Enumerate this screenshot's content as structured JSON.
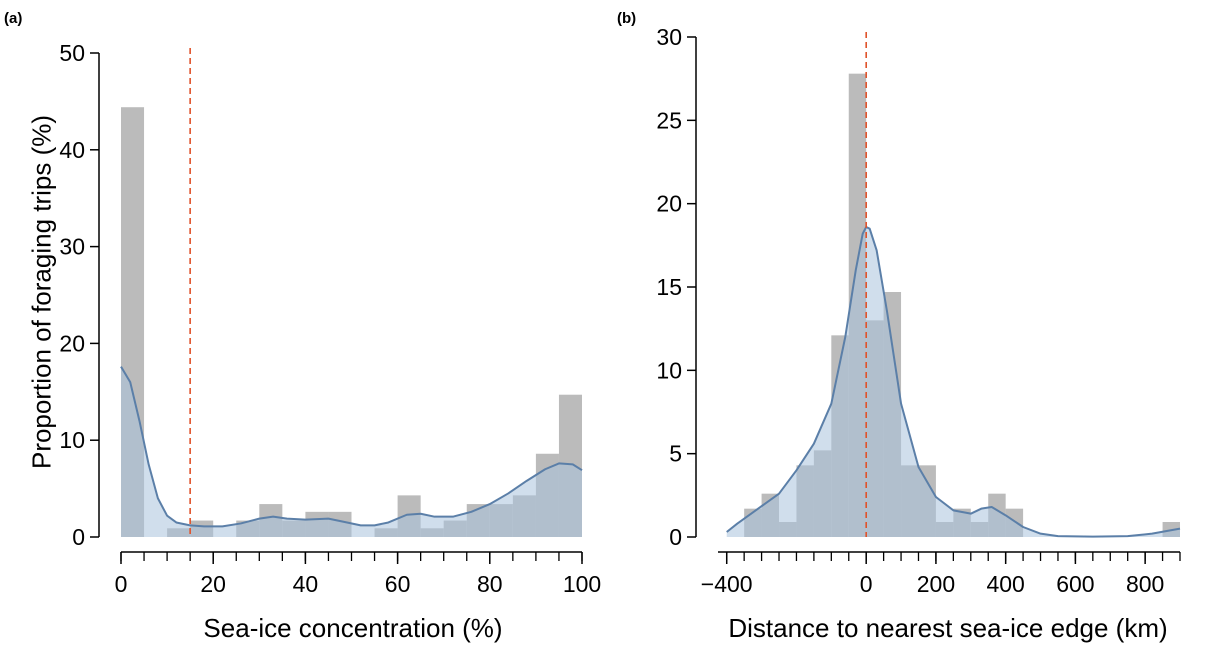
{
  "chart_data": [
    {
      "panel": "(a)",
      "type": "bar",
      "subtype": "histogram with density curve",
      "xlabel": "Sea-ice concentration (%)",
      "ylabel": "Proportion of foraging trips (%)",
      "xlim": [
        0,
        100
      ],
      "ylim": [
        0,
        50
      ],
      "xticks": [
        0,
        20,
        40,
        60,
        80,
        100
      ],
      "yticks": [
        0,
        10,
        20,
        30,
        40,
        50
      ],
      "threshold_line": 15,
      "bin_width": 5,
      "bins": [
        0,
        5,
        10,
        15,
        20,
        25,
        30,
        35,
        40,
        45,
        50,
        55,
        60,
        65,
        70,
        75,
        80,
        85,
        90,
        95
      ],
      "values": [
        44.4,
        0,
        0.9,
        1.7,
        0,
        1.7,
        3.4,
        1.7,
        2.6,
        2.6,
        0,
        0.9,
        4.3,
        0.9,
        1.7,
        3.4,
        3.4,
        4.3,
        8.6,
        14.7
      ],
      "density_x": [
        0,
        2,
        4,
        6,
        8,
        10,
        12,
        15,
        18,
        22,
        26,
        30,
        33,
        36,
        40,
        45,
        48,
        52,
        55,
        58,
        62,
        65,
        68,
        72,
        76,
        80,
        84,
        88,
        92,
        95,
        98,
        100
      ],
      "density_y": [
        17.6,
        16,
        12,
        7.5,
        4,
        2.2,
        1.5,
        1.2,
        1.1,
        1.1,
        1.4,
        1.9,
        2.1,
        1.9,
        1.8,
        1.9,
        1.6,
        1.2,
        1.2,
        1.5,
        2.3,
        2.4,
        2.1,
        2.1,
        2.6,
        3.4,
        4.5,
        5.8,
        7,
        7.6,
        7.5,
        6.9
      ]
    },
    {
      "panel": "(b)",
      "type": "bar",
      "subtype": "histogram with density curve",
      "xlabel": "Distance to nearest sea-ice edge (km)",
      "ylabel": "",
      "xlim": [
        -425,
        900
      ],
      "ylim": [
        0,
        30
      ],
      "xticks": [
        -400,
        0,
        200,
        400,
        600,
        800
      ],
      "xtick_labels": [
        "−400",
        "0",
        "200",
        "400",
        "600",
        "800"
      ],
      "yticks": [
        0,
        5,
        10,
        15,
        20,
        25,
        30
      ],
      "threshold_line": 0,
      "bin_width": 50,
      "bins": [
        -350,
        -300,
        -250,
        -200,
        -150,
        -100,
        -50,
        0,
        50,
        100,
        150,
        200,
        250,
        300,
        350,
        400,
        850
      ],
      "values": [
        1.7,
        2.6,
        0.9,
        4.3,
        5.2,
        12.1,
        27.8,
        13.0,
        14.7,
        4.3,
        4.3,
        0.9,
        1.7,
        0.9,
        2.6,
        1.7,
        0.9
      ],
      "density_x": [
        -400,
        -370,
        -330,
        -290,
        -250,
        -200,
        -150,
        -100,
        -60,
        -30,
        -10,
        0,
        10,
        30,
        60,
        100,
        150,
        200,
        250,
        300,
        330,
        360,
        400,
        450,
        500,
        550,
        650,
        750,
        820,
        860,
        900
      ],
      "density_y": [
        0.3,
        0.8,
        1.4,
        2.0,
        2.6,
        4.0,
        5.6,
        8.0,
        12,
        16,
        18.2,
        18.6,
        18.5,
        17.2,
        13.5,
        8.0,
        4.2,
        2.4,
        1.6,
        1.4,
        1.7,
        1.8,
        1.3,
        0.6,
        0.2,
        0.05,
        0.02,
        0.05,
        0.2,
        0.35,
        0.5
      ]
    }
  ],
  "colors": {
    "bar": "#9e9e9e",
    "density_fill": "#a9c3dc",
    "density_line": "#5b7fa8",
    "threshold_line": "#e0522a"
  }
}
